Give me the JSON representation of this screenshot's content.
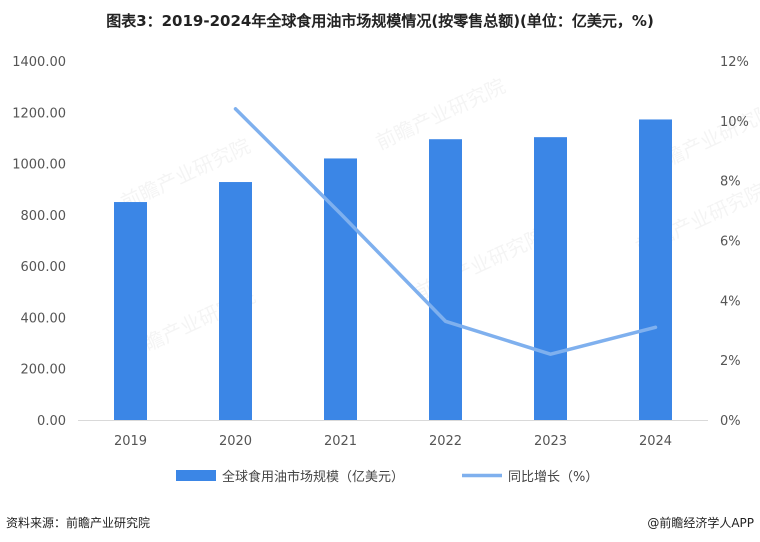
{
  "title": "图表3：2019-2024年全球食用油市场规模情况(按零售总额)(单位：亿美元，%)",
  "source": "资料来源：前瞻产业研究院",
  "brand": "@前瞻经济学人APP",
  "watermark": "前瞻产业研究院",
  "chart_data": {
    "type": "bar",
    "categories": [
      "2019",
      "2020",
      "2021",
      "2022",
      "2023",
      "2024"
    ],
    "series": [
      {
        "name": "全球食用油市场规模（亿美元）",
        "type": "bar",
        "axis": "left",
        "color": "#3b86e6",
        "values": [
          850,
          928,
          1020,
          1095,
          1103,
          1172
        ]
      },
      {
        "name": "同比增长（%）",
        "type": "line",
        "axis": "right",
        "color": "#7fb0ee",
        "values": [
          null,
          10.4,
          6.9,
          3.3,
          2.2,
          3.1
        ]
      }
    ],
    "y_left": {
      "ylim": [
        0,
        1400
      ],
      "ticks": [
        "0.00",
        "200.00",
        "400.00",
        "600.00",
        "800.00",
        "1000.00",
        "1200.00",
        "1400.00"
      ]
    },
    "y_right": {
      "ylim": [
        0,
        12
      ],
      "ticks": [
        "0%",
        "2%",
        "4%",
        "6%",
        "8%",
        "10%",
        "12%"
      ]
    },
    "legend_position": "bottom",
    "grid": false
  }
}
